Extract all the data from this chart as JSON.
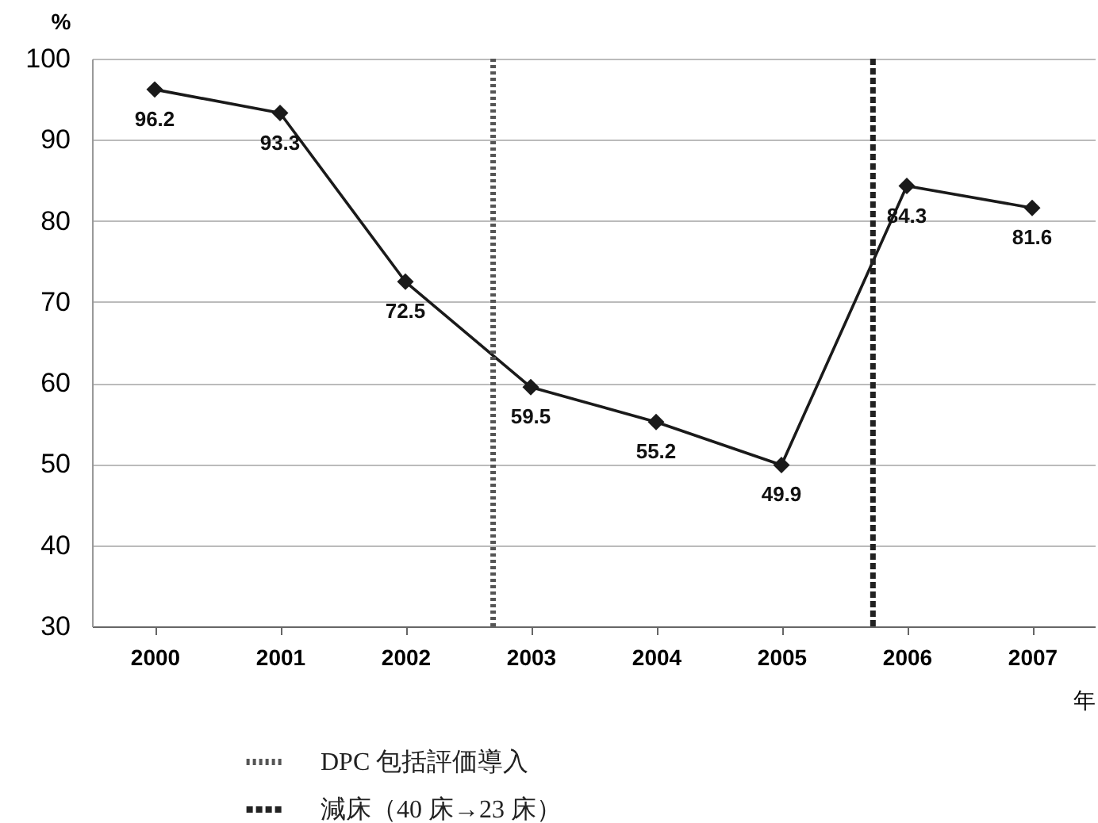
{
  "chart_data": {
    "type": "line",
    "xlabel": "年",
    "ylabel": "%",
    "x": [
      2000,
      2001,
      2002,
      2003,
      2004,
      2005,
      2006,
      2007
    ],
    "series": [
      {
        "color": "#1a1a1a",
        "values": [
          96.2,
          93.3,
          72.5,
          59.5,
          55.2,
          49.9,
          84.3,
          81.6
        ]
      }
    ],
    "xlim": [
      1999.5,
      2007.5
    ],
    "xticks": [
      2000,
      2001,
      2002,
      2003,
      2004,
      2005,
      2006,
      2007
    ],
    "ylim": [
      30,
      100
    ],
    "yticks": [
      30,
      40,
      50,
      60,
      70,
      80,
      90,
      100
    ],
    "grid": "y",
    "marker": "diamond",
    "line_style": "solid",
    "data_labels": true,
    "legend": "bottom",
    "ref_lines": [
      {
        "axis": "x",
        "value": 2002.7,
        "label": "DPC 包括評価導入",
        "color": "#555555",
        "line_style": "dotted"
      },
      {
        "axis": "x",
        "value": 2005.73,
        "label": "減床（40 床→23 床）",
        "color": "#222222",
        "line_style": "dashed"
      }
    ]
  }
}
